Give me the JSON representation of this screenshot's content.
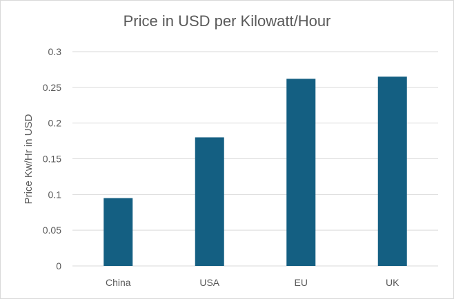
{
  "chart_data": {
    "type": "bar",
    "title": "Price in USD per Kilowatt/Hour",
    "xlabel": "",
    "ylabel": "Price Kw/Hr in USD",
    "categories": [
      "China",
      "USA",
      "EU",
      "UK"
    ],
    "values": [
      0.095,
      0.18,
      0.262,
      0.265
    ],
    "ylim": [
      0,
      0.3
    ],
    "yticks": [
      "0",
      "0.05",
      "0.1",
      "0.15",
      "0.2",
      "0.25",
      "0.3"
    ],
    "grid": true,
    "legend": "none",
    "bar_color": "#145f82",
    "grid_color": "#d9d9d9",
    "text_color": "#595959"
  }
}
